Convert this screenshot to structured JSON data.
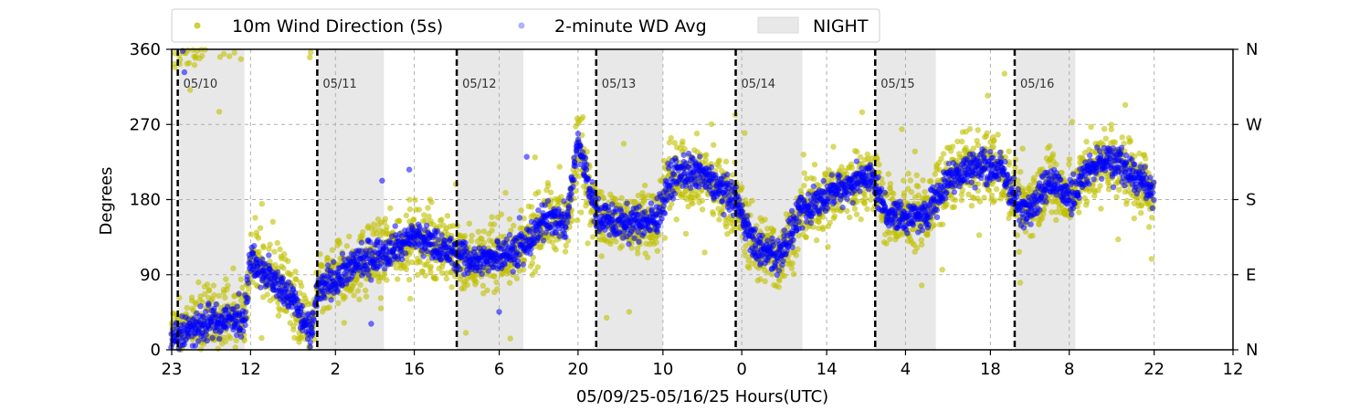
{
  "chart_data": {
    "type": "scatter",
    "xlabel": "05/09/25-05/16/25  Hours(UTC)",
    "ylabel": "Degrees",
    "xlim": [
      0,
      174
    ],
    "ylim": [
      0,
      360
    ],
    "x_unit_note_hidden": "",
    "x_tick_positions_hours": [
      0,
      13,
      27,
      40,
      54,
      67,
      81,
      94,
      108,
      121,
      135,
      148,
      162,
      175
    ],
    "x_tick_labels": [
      "23",
      "12",
      "2",
      "16",
      "6",
      "20",
      "10",
      "0",
      "14",
      "4",
      "18",
      "8",
      "22",
      "12"
    ],
    "y_ticks": [
      0,
      90,
      180,
      270,
      360
    ],
    "y_tick_labels": [
      "0",
      "90",
      "180",
      "270",
      "360"
    ],
    "right_axis_labels": [
      "N",
      "E",
      "S",
      "W",
      "N"
    ],
    "grid": true,
    "legend_placement": "top-left outside",
    "legend": [
      {
        "name": "10m Wind Direction (5s)",
        "color": "#bfbf00",
        "marker": "dot"
      },
      {
        "name": "2-minute WD Avg",
        "color": "#0000ff",
        "marker": "dot"
      },
      {
        "name": "NIGHT",
        "color": "#e8e8e8",
        "marker": "patch"
      }
    ],
    "day_boundaries": [
      {
        "label": "05/10",
        "x": 1
      },
      {
        "label": "05/11",
        "x": 24
      },
      {
        "label": "05/12",
        "x": 47
      },
      {
        "label": "05/13",
        "x": 70
      },
      {
        "label": "05/14",
        "x": 93
      },
      {
        "label": "05/15",
        "x": 116
      },
      {
        "label": "05/16",
        "x": 139
      }
    ],
    "night_periods": [
      [
        1,
        12
      ],
      [
        24,
        35
      ],
      [
        47,
        58
      ],
      [
        70,
        81
      ],
      [
        93,
        104
      ],
      [
        116,
        126
      ],
      [
        139,
        149
      ]
    ],
    "series": [
      {
        "name": "10m Wind Direction (5s)",
        "color": "#bfbf00",
        "x_start": 0,
        "x_end": 162,
        "spread_deg": 28,
        "trend_x": [
          0,
          5,
          12,
          13,
          20,
          23,
          24,
          30,
          40,
          45,
          50,
          54,
          58,
          62,
          65,
          67,
          70,
          75,
          80,
          82,
          84,
          87,
          90,
          93,
          96,
          100,
          104,
          108,
          112,
          115,
          118,
          120,
          124,
          128,
          131,
          134,
          137,
          140,
          143,
          145,
          148,
          150,
          154,
          158,
          162
        ],
        "trend_y": [
          15,
          30,
          40,
          110,
          60,
          15,
          70,
          100,
          135,
          120,
          105,
          115,
          120,
          160,
          150,
          250,
          160,
          150,
          155,
          200,
          215,
          210,
          195,
          180,
          125,
          110,
          165,
          185,
          200,
          210,
          165,
          160,
          160,
          205,
          215,
          220,
          215,
          165,
          185,
          205,
          180,
          205,
          230,
          215,
          185
        ]
      },
      {
        "name": "2-minute WD Avg",
        "color": "#0000ff",
        "x_start": 0,
        "x_end": 162,
        "spread_deg": 14,
        "trend_x": [
          0,
          5,
          12,
          13,
          20,
          23,
          24,
          30,
          40,
          45,
          50,
          54,
          58,
          62,
          65,
          67,
          70,
          75,
          80,
          82,
          84,
          87,
          90,
          93,
          96,
          100,
          104,
          108,
          112,
          115,
          118,
          120,
          124,
          128,
          131,
          134,
          137,
          140,
          143,
          145,
          148,
          150,
          154,
          158,
          162
        ],
        "trend_y": [
          15,
          30,
          40,
          110,
          60,
          15,
          70,
          100,
          135,
          120,
          105,
          115,
          120,
          160,
          150,
          250,
          160,
          150,
          155,
          200,
          215,
          210,
          195,
          180,
          125,
          110,
          165,
          185,
          200,
          210,
          165,
          160,
          160,
          205,
          215,
          220,
          215,
          165,
          185,
          205,
          180,
          205,
          230,
          215,
          185
        ]
      }
    ]
  }
}
